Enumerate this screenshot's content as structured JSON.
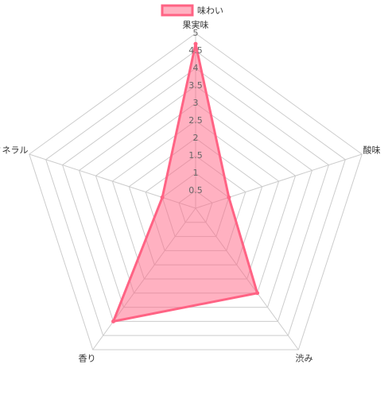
{
  "chart_data": {
    "type": "radar",
    "categories": [
      "果実味",
      "酸味",
      "渋み",
      "香り",
      "ミネラル"
    ],
    "series": [
      {
        "name": "味わい",
        "color": "#ff6384",
        "values": [
          4.7,
          1,
          3,
          4,
          1
        ]
      }
    ],
    "ylim": [
      0,
      5
    ],
    "yticks": [
      0.5,
      1,
      1.5,
      2,
      2.5,
      3,
      3.5,
      4,
      4.5,
      5
    ],
    "grid": true,
    "legend": "top"
  }
}
